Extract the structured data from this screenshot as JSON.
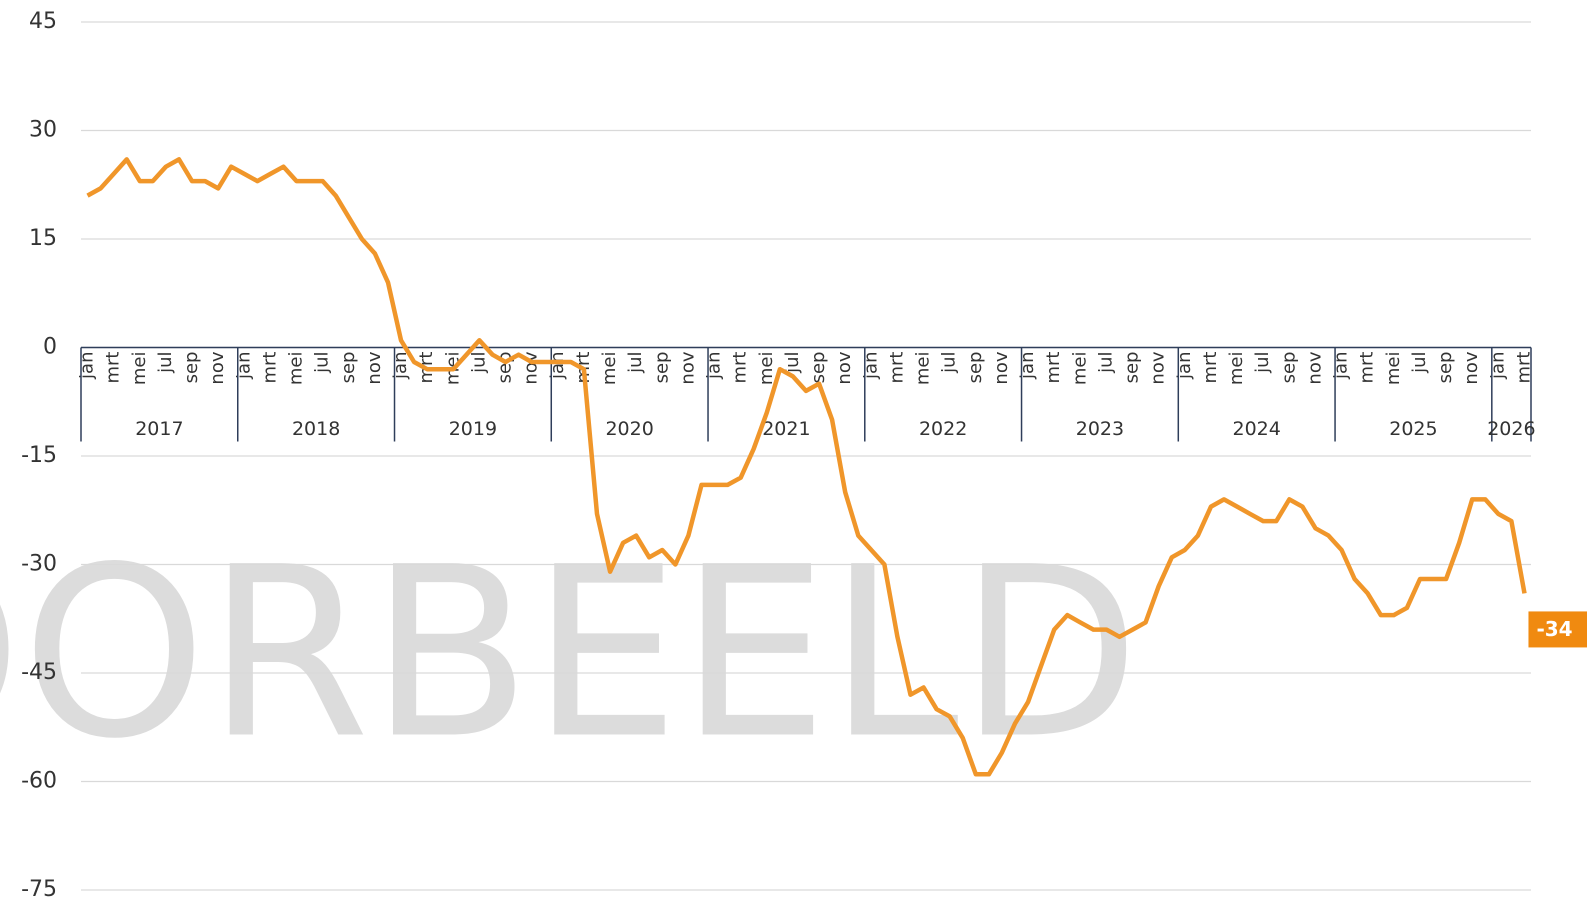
{
  "chart_data": {
    "type": "line",
    "watermark": "VOORBEELD",
    "categories": [
      "jan",
      null,
      "mrt",
      null,
      "mei",
      null,
      "jul",
      null,
      "sep",
      null,
      "nov",
      null,
      "jan",
      null,
      "mrt",
      null,
      "mei",
      null,
      "jul",
      null,
      "sep",
      null,
      "nov",
      null,
      "jan",
      null,
      "mrt",
      null,
      "mei",
      null,
      "jul",
      null,
      "sep",
      null,
      "nov",
      null,
      "jan",
      null,
      "mrt",
      null,
      "mei",
      null,
      "jul",
      null,
      "sep",
      null,
      "nov",
      null,
      "jan",
      null,
      "mrt",
      null,
      "mei",
      null,
      "jul",
      null,
      "sep",
      null,
      "nov",
      null,
      "jan",
      null,
      "mrt",
      null,
      "mei",
      null,
      "jul",
      null,
      "sep",
      null,
      "nov",
      null,
      "jan",
      null,
      "mrt",
      null,
      "mei",
      null,
      "jul",
      null,
      "sep",
      null,
      "nov",
      null,
      "jan",
      null,
      "mrt",
      null,
      "mei",
      null,
      "jul",
      null,
      "sep",
      null,
      "nov",
      null,
      "jan",
      null,
      "mrt",
      null,
      "mei",
      null,
      "jul",
      null,
      "sep",
      null,
      "nov",
      null,
      "jan",
      null,
      "mrt"
    ],
    "year_labels": [
      "2017",
      "2018",
      "2019",
      "2020",
      "2021",
      "2022",
      "2023",
      "2024",
      "2025",
      "2026"
    ],
    "series": [
      {
        "color": "#f0962a",
        "values": [
          21,
          22,
          24,
          26,
          23,
          23,
          25,
          26,
          23,
          23,
          22,
          25,
          24,
          23,
          24,
          25,
          23,
          23,
          23,
          21,
          18,
          15,
          13,
          9,
          1,
          -2,
          -3,
          -3,
          -3,
          -1,
          1,
          -1,
          -2,
          -1,
          -2,
          -2,
          -2,
          -2,
          -3,
          -23,
          -31,
          -27,
          -26,
          -29,
          -28,
          -30,
          -26,
          -19,
          -19,
          -19,
          -18,
          -14,
          -9,
          -3,
          -4,
          -6,
          -5,
          -10,
          -20,
          -26,
          -28,
          -30,
          -40,
          -48,
          -47,
          -50,
          -51,
          -54,
          -59,
          -59,
          -56,
          -52,
          -49,
          -44,
          -39,
          -37,
          -38,
          -39,
          -39,
          -40,
          -39,
          -38,
          -33,
          -29,
          -28,
          -26,
          -22,
          -21,
          -22,
          -23,
          -24,
          -24,
          -21,
          -22,
          -25,
          -26,
          -28,
          -32,
          -34,
          -37,
          -37,
          -36,
          -32,
          -32,
          -32,
          -27,
          -21,
          -21,
          -23,
          -24,
          -34
        ]
      }
    ],
    "last_value_label": "-34",
    "label_color": "#f08a10",
    "ylim": [
      -75,
      45
    ],
    "yticks": [
      -75,
      -60,
      -45,
      -30,
      -15,
      0,
      15,
      30,
      45
    ],
    "grid": true
  }
}
